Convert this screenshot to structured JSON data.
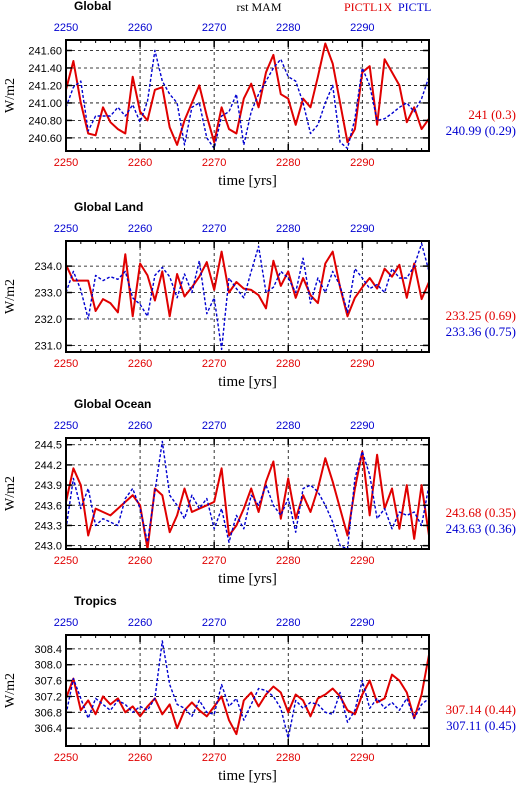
{
  "header": {
    "title": "rst MAM",
    "series_labels": [
      "PICTL1X",
      "PICTL"
    ]
  },
  "colors": {
    "red": "#e00000",
    "blue": "#0000d0",
    "axis": "#000000",
    "grid": "#000000"
  },
  "chart_data": [
    {
      "type": "line",
      "title": "Global",
      "xlabel": "time [yrs]",
      "ylabel": "W/m2",
      "xlim": [
        2250,
        2299
      ],
      "ylim": [
        240.45,
        241.72
      ],
      "bottom_ticks": [
        "2250",
        "2260",
        "2270",
        "2280",
        "2290"
      ],
      "top_ticks": [
        "2250",
        "2260",
        "2270",
        "2280",
        "2290"
      ],
      "yticks": [
        240.6,
        240.8,
        241.0,
        241.2,
        241.4,
        241.6
      ],
      "ytick_labels": [
        "240.60",
        "240.80",
        "241.00",
        "241.20",
        "241.40",
        "241.60"
      ],
      "grid": true,
      "stats": [
        {
          "text": "241 (0.3)",
          "color": "red"
        },
        {
          "text": "240.99 (0.29)",
          "color": "blue"
        }
      ],
      "series": [
        {
          "color": "red",
          "dash": false,
          "x": [
            2250,
            2251,
            2252,
            2253,
            2254,
            2255,
            2256,
            2257,
            2258,
            2259,
            2260,
            2261,
            2262,
            2263,
            2264,
            2265,
            2266,
            2267,
            2268,
            2269,
            2270,
            2271,
            2272,
            2273,
            2274,
            2275,
            2276,
            2277,
            2278,
            2279,
            2280,
            2281,
            2282,
            2283,
            2284,
            2285,
            2286,
            2287,
            2288,
            2289,
            2290,
            2291,
            2292,
            2293,
            2294,
            2295,
            2296,
            2297,
            2298,
            2299
          ],
          "values": [
            241.15,
            241.48,
            241.0,
            240.65,
            240.63,
            240.95,
            240.78,
            240.7,
            240.65,
            241.3,
            240.9,
            240.8,
            241.15,
            241.18,
            240.72,
            240.52,
            240.8,
            241.0,
            241.2,
            240.85,
            240.55,
            240.95,
            240.7,
            240.65,
            241.05,
            241.22,
            240.95,
            241.35,
            241.55,
            241.1,
            241.05,
            240.75,
            241.05,
            240.95,
            241.3,
            241.68,
            241.45,
            241.0,
            240.55,
            240.7,
            241.35,
            241.42,
            240.75,
            241.5,
            241.35,
            241.2,
            240.78,
            240.95,
            240.7,
            240.82
          ]
        },
        {
          "color": "blue",
          "dash": true,
          "x": [
            2250,
            2251,
            2252,
            2253,
            2254,
            2255,
            2256,
            2257,
            2258,
            2259,
            2260,
            2261,
            2262,
            2263,
            2264,
            2265,
            2266,
            2267,
            2268,
            2269,
            2270,
            2271,
            2272,
            2273,
            2274,
            2275,
            2276,
            2277,
            2278,
            2279,
            2280,
            2281,
            2282,
            2283,
            2284,
            2285,
            2286,
            2287,
            2288,
            2289,
            2290,
            2291,
            2292,
            2293,
            2294,
            2295,
            2296,
            2297,
            2298,
            2299
          ],
          "values": [
            240.95,
            241.18,
            241.25,
            240.68,
            240.85,
            240.85,
            240.85,
            240.95,
            240.85,
            240.98,
            240.78,
            241.02,
            241.6,
            241.25,
            241.1,
            241.0,
            240.52,
            240.95,
            241.0,
            240.6,
            240.48,
            240.85,
            240.9,
            241.1,
            240.52,
            240.9,
            241.1,
            241.25,
            241.4,
            241.5,
            241.3,
            241.25,
            241.0,
            240.65,
            240.75,
            241.0,
            241.2,
            240.55,
            240.48,
            240.82,
            241.4,
            241.2,
            240.8,
            240.82,
            240.88,
            240.95,
            241.0,
            240.9,
            241.05,
            241.3
          ]
        }
      ]
    },
    {
      "type": "line",
      "title": "Global Land",
      "xlabel": "time [yrs]",
      "ylabel": "W/m2",
      "xlim": [
        2250,
        2299
      ],
      "ylim": [
        230.75,
        234.95
      ],
      "bottom_ticks": [
        "2250",
        "2260",
        "2270",
        "2280",
        "2290"
      ],
      "top_ticks": [
        "2250",
        "2260",
        "2270",
        "2280",
        "2290"
      ],
      "yticks": [
        231.0,
        232.0,
        233.0,
        234.0
      ],
      "ytick_labels": [
        "231.0",
        "232.0",
        "233.0",
        "234.0"
      ],
      "grid": true,
      "stats": [
        {
          "text": "233.25 (0.69)",
          "color": "red"
        },
        {
          "text": "233.36 (0.75)",
          "color": "blue"
        }
      ],
      "series": [
        {
          "color": "red",
          "dash": false,
          "x": [
            2250,
            2251,
            2252,
            2253,
            2254,
            2255,
            2256,
            2257,
            2258,
            2259,
            2260,
            2261,
            2262,
            2263,
            2264,
            2265,
            2266,
            2267,
            2268,
            2269,
            2270,
            2271,
            2272,
            2273,
            2274,
            2275,
            2276,
            2277,
            2278,
            2279,
            2280,
            2281,
            2282,
            2283,
            2284,
            2285,
            2286,
            2287,
            2288,
            2289,
            2290,
            2291,
            2292,
            2293,
            2294,
            2295,
            2296,
            2297,
            2298,
            2299
          ],
          "values": [
            234.05,
            233.45,
            233.45,
            233.45,
            232.3,
            232.75,
            232.6,
            232.25,
            234.45,
            232.1,
            234.1,
            233.65,
            232.7,
            233.8,
            232.1,
            233.7,
            232.85,
            233.2,
            233.6,
            234.15,
            233.1,
            234.55,
            233.0,
            233.4,
            233.15,
            233.1,
            232.9,
            232.4,
            234.2,
            233.25,
            233.8,
            232.8,
            233.55,
            232.9,
            232.6,
            234.1,
            234.55,
            233.2,
            232.1,
            232.8,
            233.2,
            233.55,
            233.15,
            233.9,
            233.6,
            234.05,
            232.8,
            234.1,
            232.75,
            233.4
          ]
        },
        {
          "color": "blue",
          "dash": true,
          "x": [
            2250,
            2251,
            2252,
            2253,
            2254,
            2255,
            2256,
            2257,
            2258,
            2259,
            2260,
            2261,
            2262,
            2263,
            2264,
            2265,
            2266,
            2267,
            2268,
            2269,
            2270,
            2271,
            2272,
            2273,
            2274,
            2275,
            2276,
            2277,
            2278,
            2279,
            2280,
            2281,
            2282,
            2283,
            2284,
            2285,
            2286,
            2287,
            2288,
            2289,
            2290,
            2291,
            2292,
            2293,
            2294,
            2295,
            2296,
            2297,
            2298,
            2299
          ],
          "values": [
            233.0,
            233.8,
            233.1,
            232.0,
            233.65,
            233.45,
            233.6,
            233.5,
            233.8,
            232.8,
            232.55,
            232.1,
            233.65,
            233.95,
            233.6,
            232.8,
            233.7,
            233.0,
            234.2,
            232.2,
            232.8,
            230.85,
            233.55,
            233.15,
            232.8,
            233.8,
            234.75,
            233.0,
            233.2,
            233.8,
            233.55,
            233.0,
            234.3,
            232.6,
            233.55,
            233.0,
            233.8,
            233.25,
            232.25,
            233.9,
            233.55,
            233.15,
            233.3,
            233.0,
            233.9,
            233.55,
            233.55,
            234.0,
            234.85,
            233.8
          ]
        }
      ]
    },
    {
      "type": "line",
      "title": "Global Ocean",
      "xlabel": "time [yrs]",
      "ylabel": "W/m2",
      "xlim": [
        2250,
        2299
      ],
      "ylim": [
        242.95,
        244.6
      ],
      "bottom_ticks": [
        "2250",
        "2260",
        "2270",
        "2280",
        "2290"
      ],
      "top_ticks": [
        "2250",
        "2260",
        "2270",
        "2280",
        "2290"
      ],
      "yticks": [
        243.0,
        243.3,
        243.6,
        243.9,
        244.2,
        244.5
      ],
      "ytick_labels": [
        "243.0",
        "243.3",
        "243.6",
        "243.9",
        "244.2",
        "244.5"
      ],
      "grid": true,
      "stats": [
        {
          "text": "243.68 (0.35)",
          "color": "red"
        },
        {
          "text": "243.63 (0.36)",
          "color": "blue"
        }
      ],
      "series": [
        {
          "color": "red",
          "dash": false,
          "x": [
            2250,
            2251,
            2252,
            2253,
            2254,
            2255,
            2256,
            2257,
            2258,
            2259,
            2260,
            2261,
            2262,
            2263,
            2264,
            2265,
            2266,
            2267,
            2268,
            2269,
            2270,
            2271,
            2272,
            2273,
            2274,
            2275,
            2276,
            2277,
            2278,
            2279,
            2280,
            2281,
            2282,
            2283,
            2284,
            2285,
            2286,
            2287,
            2288,
            2289,
            2290,
            2291,
            2292,
            2293,
            2294,
            2295,
            2296,
            2297,
            2298,
            2299
          ],
          "values": [
            243.65,
            244.15,
            243.9,
            243.15,
            243.55,
            243.5,
            243.45,
            243.55,
            243.65,
            243.75,
            243.6,
            242.95,
            243.85,
            243.75,
            243.2,
            243.45,
            243.85,
            243.5,
            243.55,
            243.6,
            243.65,
            244.15,
            243.15,
            243.3,
            243.55,
            243.85,
            243.5,
            243.95,
            244.25,
            243.4,
            244.0,
            243.4,
            243.75,
            243.5,
            243.85,
            244.3,
            243.95,
            243.55,
            243.15,
            243.85,
            244.4,
            243.45,
            244.35,
            243.55,
            243.85,
            243.25,
            243.9,
            243.1,
            243.9,
            243.15
          ]
        },
        {
          "color": "blue",
          "dash": true,
          "x": [
            2250,
            2251,
            2252,
            2253,
            2254,
            2255,
            2256,
            2257,
            2258,
            2259,
            2260,
            2261,
            2262,
            2263,
            2264,
            2265,
            2266,
            2267,
            2268,
            2269,
            2270,
            2271,
            2272,
            2273,
            2274,
            2275,
            2276,
            2277,
            2278,
            2279,
            2280,
            2281,
            2282,
            2283,
            2284,
            2285,
            2286,
            2287,
            2288,
            2289,
            2290,
            2291,
            2292,
            2293,
            2294,
            2295,
            2296,
            2297,
            2298,
            2299
          ],
          "values": [
            243.25,
            244.0,
            243.55,
            243.85,
            243.3,
            243.4,
            243.35,
            243.3,
            243.7,
            243.85,
            243.55,
            243.05,
            243.8,
            244.55,
            243.75,
            243.6,
            243.4,
            243.75,
            243.55,
            243.7,
            243.25,
            243.55,
            243.05,
            243.45,
            243.25,
            243.75,
            243.6,
            243.9,
            243.6,
            243.45,
            243.7,
            243.2,
            243.85,
            243.9,
            243.8,
            243.6,
            243.35,
            243.0,
            242.95,
            244.0,
            244.4,
            244.05,
            243.4,
            243.55,
            243.25,
            243.5,
            243.45,
            243.5,
            243.3,
            243.9
          ]
        }
      ]
    },
    {
      "type": "line",
      "title": "Tropics",
      "xlabel": "time [yrs]",
      "ylabel": "W/m2",
      "xlim": [
        2250,
        2299
      ],
      "ylim": [
        305.95,
        308.75
      ],
      "bottom_ticks": [
        "2250",
        "2260",
        "2270",
        "2280",
        "2290"
      ],
      "top_ticks": [
        "2250",
        "2260",
        "2270",
        "2280",
        "2290"
      ],
      "yticks": [
        306.4,
        306.8,
        307.2,
        307.6,
        308.0,
        308.4
      ],
      "ytick_labels": [
        "306.4",
        "306.8",
        "307.2",
        "307.6",
        "308.0",
        "308.4"
      ],
      "grid": true,
      "stats": [
        {
          "text": "307.14 (0.44)",
          "color": "red"
        },
        {
          "text": "307.11 (0.45)",
          "color": "blue"
        }
      ],
      "series": [
        {
          "color": "red",
          "dash": false,
          "x": [
            2250,
            2251,
            2252,
            2253,
            2254,
            2255,
            2256,
            2257,
            2258,
            2259,
            2260,
            2261,
            2262,
            2263,
            2264,
            2265,
            2266,
            2267,
            2268,
            2269,
            2270,
            2271,
            2272,
            2273,
            2274,
            2275,
            2276,
            2277,
            2278,
            2279,
            2280,
            2281,
            2282,
            2283,
            2284,
            2285,
            2286,
            2287,
            2288,
            2289,
            2290,
            2291,
            2292,
            2293,
            2294,
            2295,
            2296,
            2297,
            2298,
            2299
          ],
          "values": [
            307.15,
            307.65,
            306.85,
            307.1,
            306.75,
            307.2,
            307.0,
            307.15,
            306.8,
            306.95,
            306.7,
            306.95,
            307.15,
            306.75,
            307.0,
            306.4,
            306.85,
            307.05,
            306.85,
            306.7,
            306.95,
            307.2,
            306.6,
            306.25,
            307.1,
            307.3,
            306.95,
            307.25,
            307.45,
            307.3,
            306.8,
            307.25,
            307.1,
            306.7,
            307.15,
            307.25,
            307.4,
            307.2,
            306.85,
            306.75,
            307.25,
            307.6,
            307.05,
            307.15,
            307.75,
            307.6,
            307.3,
            306.65,
            307.25,
            308.25
          ]
        },
        {
          "color": "blue",
          "dash": true,
          "x": [
            2250,
            2251,
            2252,
            2253,
            2254,
            2255,
            2256,
            2257,
            2258,
            2259,
            2260,
            2261,
            2262,
            2263,
            2264,
            2265,
            2266,
            2267,
            2268,
            2269,
            2270,
            2271,
            2272,
            2273,
            2274,
            2275,
            2276,
            2277,
            2278,
            2279,
            2280,
            2281,
            2282,
            2283,
            2284,
            2285,
            2286,
            2287,
            2288,
            2289,
            2290,
            2291,
            2292,
            2293,
            2294,
            2295,
            2296,
            2297,
            2298,
            2299
          ],
          "values": [
            306.75,
            307.65,
            307.15,
            306.65,
            307.15,
            307.0,
            306.85,
            307.1,
            307.0,
            306.8,
            306.95,
            306.85,
            307.15,
            308.6,
            307.5,
            307.0,
            306.9,
            306.7,
            307.1,
            306.8,
            306.75,
            307.5,
            306.95,
            307.15,
            306.6,
            307.0,
            307.4,
            307.35,
            307.2,
            306.9,
            306.15,
            307.1,
            306.9,
            307.05,
            307.0,
            306.8,
            306.75,
            307.3,
            306.55,
            306.85,
            307.6,
            306.9,
            307.15,
            306.9,
            307.05,
            306.85,
            307.15,
            306.65,
            307.0,
            307.15
          ]
        }
      ]
    }
  ]
}
